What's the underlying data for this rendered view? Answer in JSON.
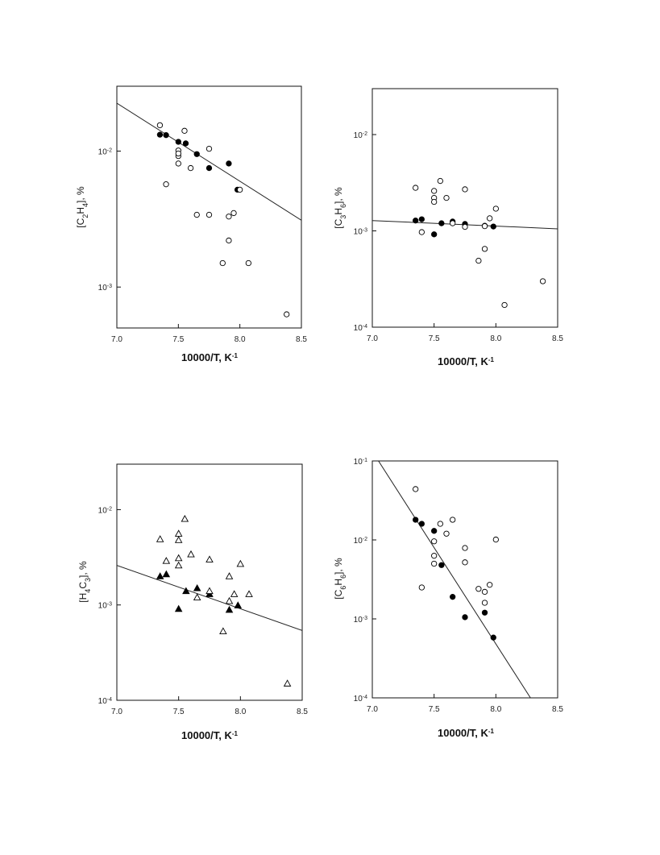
{
  "chart_data": [
    {
      "type": "scatter",
      "ylabel": "[C2H4], %",
      "xlabel": "10000/T, K-1",
      "xlim": [
        7.0,
        8.5
      ],
      "ylim": [
        0.0005,
        0.03
      ],
      "yscale": "log",
      "xticks": [
        7.0,
        7.5,
        8.0,
        8.5
      ],
      "xtick_labels": [
        "7.0",
        "7.5",
        "8.0",
        "8.5"
      ],
      "yticks": [
        0.01,
        0.001
      ],
      "ytick_labels": [
        "10-2",
        "10-3"
      ],
      "marker": "circle",
      "series": [
        {
          "filled": true,
          "x": [
            7.35,
            7.4,
            7.5,
            7.56,
            7.65,
            7.75,
            7.91,
            7.98
          ],
          "y": [
            0.0132,
            0.0131,
            0.0117,
            0.0114,
            0.0095,
            0.0075,
            0.0081,
            0.0052
          ]
        },
        {
          "filled": false,
          "x": [
            7.35,
            7.5,
            7.5,
            7.5,
            7.55,
            7.6,
            7.75,
            7.4,
            7.65,
            7.75,
            7.91,
            7.91,
            7.95,
            8.0,
            7.86,
            8.07,
            8.38,
            7.5
          ],
          "y": [
            0.0155,
            0.0101,
            0.0092,
            0.0081,
            0.0141,
            0.0075,
            0.0104,
            0.0057,
            0.0034,
            0.0034,
            0.0033,
            0.0022,
            0.0035,
            0.0052,
            0.0015,
            0.0015,
            0.00063,
            0.0096
          ]
        }
      ],
      "fit_line": {
        "x": [
          7.0,
          8.5
        ],
        "y": [
          0.0225,
          0.0031
        ]
      }
    },
    {
      "type": "scatter",
      "ylabel": "[C3H6], %",
      "xlabel": "10000/T, K-1",
      "xlim": [
        7.0,
        8.5
      ],
      "ylim": [
        0.0001,
        0.03
      ],
      "yscale": "log",
      "xticks": [
        7.0,
        7.5,
        8.0,
        8.5
      ],
      "xtick_labels": [
        "7.0",
        "7.5",
        "8.0",
        "8.5"
      ],
      "yticks": [
        0.01,
        0.001,
        0.0001
      ],
      "ytick_labels": [
        "10-2",
        "10-3",
        "10-4"
      ],
      "marker": "circle",
      "series": [
        {
          "filled": true,
          "x": [
            7.35,
            7.4,
            7.5,
            7.56,
            7.65,
            7.75,
            7.91,
            7.98
          ],
          "y": [
            0.00128,
            0.00132,
            0.00092,
            0.0012,
            0.00125,
            0.00118,
            0.00113,
            0.00111
          ]
        },
        {
          "filled": false,
          "x": [
            7.35,
            7.55,
            7.5,
            7.5,
            7.5,
            7.6,
            7.75,
            7.4,
            7.65,
            7.75,
            7.91,
            7.95,
            8.0,
            7.86,
            7.91,
            8.07,
            8.38
          ],
          "y": [
            0.0028,
            0.0033,
            0.0026,
            0.0022,
            0.002,
            0.0022,
            0.0027,
            0.00097,
            0.0012,
            0.0011,
            0.00112,
            0.00135,
            0.0017,
            0.00049,
            0.00065,
            0.00017,
            0.0003
          ]
        }
      ],
      "fit_line": {
        "x": [
          7.0,
          8.5
        ],
        "y": [
          0.00128,
          0.00105
        ]
      }
    },
    {
      "type": "scatter",
      "ylabel": "[H4C3], %",
      "xlabel": "10000/T, K-1",
      "xlim": [
        7.0,
        8.5
      ],
      "ylim": [
        0.0001,
        0.03
      ],
      "yscale": "log",
      "xticks": [
        7.0,
        7.5,
        8.0,
        8.5
      ],
      "xtick_labels": [
        "7.0",
        "7.5",
        "8.0",
        "8.5"
      ],
      "yticks": [
        0.01,
        0.001,
        0.0001
      ],
      "ytick_labels": [
        "10-2",
        "10-3",
        "10-4"
      ],
      "marker": "triangle",
      "series": [
        {
          "filled": true,
          "x": [
            7.35,
            7.4,
            7.5,
            7.56,
            7.65,
            7.75,
            7.91,
            7.98
          ],
          "y": [
            0.002,
            0.0021,
            0.00091,
            0.0014,
            0.0015,
            0.0013,
            0.00089,
            0.00099
          ]
        },
        {
          "filled": false,
          "x": [
            7.35,
            7.5,
            7.5,
            7.55,
            7.4,
            7.5,
            7.5,
            7.6,
            7.75,
            7.75,
            7.65,
            7.91,
            7.95,
            8.0,
            8.07,
            7.91,
            7.86,
            8.38
          ],
          "y": [
            0.0049,
            0.0056,
            0.0048,
            0.008,
            0.0029,
            0.0031,
            0.0026,
            0.0034,
            0.003,
            0.0014,
            0.0012,
            0.002,
            0.0013,
            0.0027,
            0.0013,
            0.0011,
            0.00053,
            0.00015
          ]
        }
      ],
      "fit_line": {
        "x": [
          7.0,
          8.5
        ],
        "y": [
          0.0026,
          0.00054
        ]
      }
    },
    {
      "type": "scatter",
      "ylabel": "[C6H6], %",
      "xlabel": "10000/T, K-1",
      "xlim": [
        7.0,
        8.5
      ],
      "ylim": [
        0.0001,
        0.1
      ],
      "yscale": "log",
      "xticks": [
        7.0,
        7.5,
        8.0,
        8.5
      ],
      "xtick_labels": [
        "7.0",
        "7.5",
        "8.0",
        "8.5"
      ],
      "yticks": [
        0.1,
        0.01,
        0.001,
        0.0001
      ],
      "ytick_labels": [
        "10-1",
        "10-2",
        "10-3",
        "10-4"
      ],
      "marker": "circle",
      "series": [
        {
          "filled": true,
          "x": [
            7.35,
            7.4,
            7.5,
            7.56,
            7.65,
            7.75,
            7.91,
            7.98
          ],
          "y": [
            0.018,
            0.016,
            0.013,
            0.0048,
            0.0019,
            0.00105,
            0.0012,
            0.00058
          ]
        },
        {
          "filled": false,
          "x": [
            7.35,
            7.55,
            7.65,
            7.6,
            7.5,
            7.5,
            7.5,
            7.75,
            7.75,
            8.0,
            7.4,
            7.86,
            7.95,
            7.91,
            7.91
          ],
          "y": [
            0.044,
            0.016,
            0.018,
            0.012,
            0.0096,
            0.0063,
            0.005,
            0.0079,
            0.0052,
            0.0101,
            0.0025,
            0.0024,
            0.0027,
            0.0022,
            0.0016
          ]
        }
      ],
      "fit_line": {
        "x": [
          7.05,
          8.28
        ],
        "y": [
          0.1,
          0.0001
        ]
      }
    }
  ]
}
